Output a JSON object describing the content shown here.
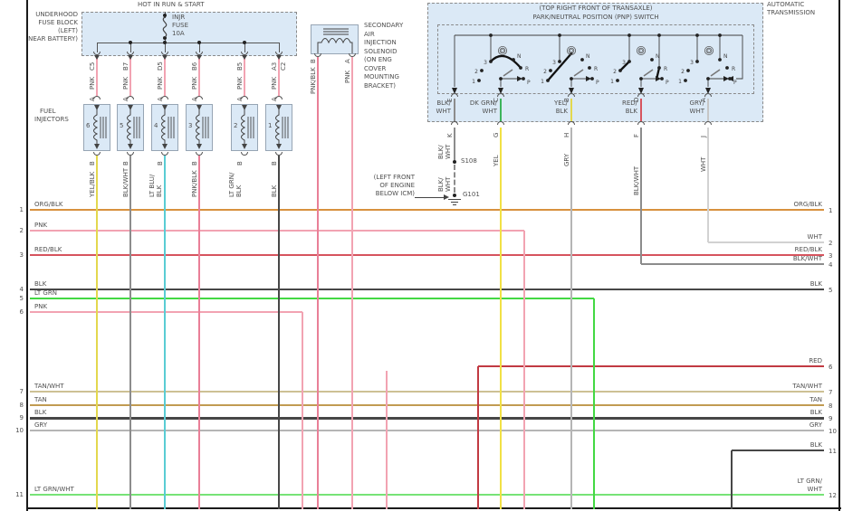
{
  "colors": {
    "ORG/BLK": "#d8913e",
    "PNK": "#f2a3b2",
    "RED/BLK": "#d6545e",
    "BLK": "#474747",
    "LT GRN": "#43d843",
    "TAN/WHT": "#cdc194",
    "TAN": "#c19b52",
    "GRY": "#b5b5b5",
    "LT GRN/WHT": "#77e377",
    "WHT": "#d2d2d2",
    "BLK/WHT": "#8c8c8c",
    "RED": "#c13a42",
    "YEL": "#f1e145",
    "YEL/BLK": "#e3d84e",
    "LT BLU/BLK": "#59ccd4",
    "PNK/BLK": "#e97f97",
    "DK GRN/WHT": "#3cb45b",
    "GRY/WHT": "#c6c6c6",
    "panel_fill": "#dbe9f6"
  },
  "fuse_block": {
    "header": "HOT IN RUN & START",
    "location_lines": [
      "UNDERHOOD",
      "FUSE BLOCK",
      "(LEFT)",
      "(NEAR BATTERY)"
    ],
    "fuse_lines": [
      "INJR",
      "FUSE",
      "10A"
    ],
    "pins": [
      "C5",
      "B7",
      "D5",
      "B6",
      "B5",
      "A3"
    ],
    "connector": "C2"
  },
  "injectors": {
    "title_lines": [
      "FUEL",
      "INJECTORS"
    ],
    "feed_wire": "PNK",
    "pin_top": "A",
    "pin_bottom": "B",
    "items": [
      {
        "num": "6",
        "wire_lines": [
          "YEL/BLK"
        ]
      },
      {
        "num": "5",
        "wire_lines": [
          "BLK/WHT"
        ]
      },
      {
        "num": "4",
        "wire_lines": [
          "LT BLU/",
          "BLK"
        ]
      },
      {
        "num": "3",
        "wire_lines": [
          "PNK/BLK"
        ]
      },
      {
        "num": "2",
        "wire_lines": [
          "LT GRN/",
          "BLK"
        ]
      },
      {
        "num": "1",
        "wire_lines": [
          "BLK"
        ]
      }
    ]
  },
  "solenoid": {
    "label_lines": [
      "SECONDARY",
      "AIR",
      "INJECTION",
      "SOLENOID",
      "(ON ENG",
      "COVER",
      "MOUNTING",
      "BRACKET)"
    ],
    "wires": [
      {
        "pin": "B",
        "label": "PNK/BLK"
      },
      {
        "pin": "A",
        "label": "PNK"
      }
    ]
  },
  "pnp": {
    "corner_lines": [
      "AUTOMATIC",
      "TRANSMISSION"
    ],
    "title1": "(TOP RIGHT FRONT OF TRANSAXLE)",
    "title2": "PARK/NEUTRAL POSITION (PNP) SWITCH",
    "positions": {
      "d": "D",
      "n": "N",
      "r": "R",
      "p": "P",
      "g3": "3",
      "g2": "2",
      "g1": "1"
    },
    "columns": [
      {
        "pin_top": "E",
        "inner_lines": [
          "BLK/",
          "WHT"
        ],
        "inner_color": "BLK/WHT",
        "pin_bot": "K",
        "outer_lines": [
          "BLK/",
          "WHT"
        ],
        "outer_color": "BLK/WHT"
      },
      {
        "pin_top": "C",
        "inner_lines": [
          "DK GRN/",
          "WHT"
        ],
        "inner_color": "DK GRN/WHT",
        "pin_bot": "G",
        "outer_lines": [
          "YEL"
        ],
        "outer_color": "YEL"
      },
      {
        "pin_top": "B",
        "inner_lines": [
          "YEL/",
          "BLK"
        ],
        "inner_color": "YEL/BLK",
        "pin_bot": "H",
        "outer_lines": [
          "GRY"
        ],
        "outer_color": "GRY"
      },
      {
        "pin_top": "D",
        "inner_lines": [
          "RED/",
          "BLK"
        ],
        "inner_color": "RED/BLK",
        "pin_bot": "F",
        "outer_lines": [
          "BLK/WHT"
        ],
        "outer_color": "BLK/WHT"
      },
      {
        "pin_top": "A",
        "inner_lines": [
          "GRY/",
          "WHT"
        ],
        "inner_color": "GRY/WHT",
        "pin_bot": "J",
        "outer_lines": [
          "WHT"
        ],
        "outer_color": "WHT"
      }
    ],
    "splice": "S108",
    "ground": "G101",
    "ground_wire_lines": [
      "BLK/",
      "WHT"
    ],
    "ground_note_lines": [
      "(LEFT FRONT",
      "OF ENGINE",
      "BELOW ICM)"
    ]
  },
  "left_rows": [
    {
      "num": "1",
      "label": "ORG/BLK"
    },
    {
      "num": "2",
      "label": "PNK"
    },
    {
      "num": "3",
      "label": "RED/BLK"
    },
    {
      "num": "4",
      "label": "BLK"
    },
    {
      "num": "5",
      "label": "LT GRN"
    },
    {
      "num": "6",
      "label": "PNK"
    },
    {
      "num": "7",
      "label": "TAN/WHT"
    },
    {
      "num": "8",
      "label": "TAN"
    },
    {
      "num": "9",
      "label": "BLK"
    },
    {
      "num": "10",
      "label": "GRY"
    },
    {
      "num": "11",
      "label": "LT GRN/WHT"
    }
  ],
  "right_rows": [
    {
      "num": "1",
      "label": "ORG/BLK"
    },
    {
      "num": "2",
      "label": "WHT"
    },
    {
      "num": "3",
      "label": "RED/BLK"
    },
    {
      "num": "4",
      "label": "BLK/WHT"
    },
    {
      "num": "5",
      "label": "BLK"
    },
    {
      "num": "6",
      "label": "RED"
    },
    {
      "num": "7",
      "label": "TAN/WHT"
    },
    {
      "num": "8",
      "label": "TAN"
    },
    {
      "num": "9",
      "label": "BLK"
    },
    {
      "num": "10",
      "label": "GRY"
    },
    {
      "num": "11",
      "label": "BLK"
    },
    {
      "num": "12",
      "label": "LT GRN/",
      "label2": "WHT"
    }
  ]
}
